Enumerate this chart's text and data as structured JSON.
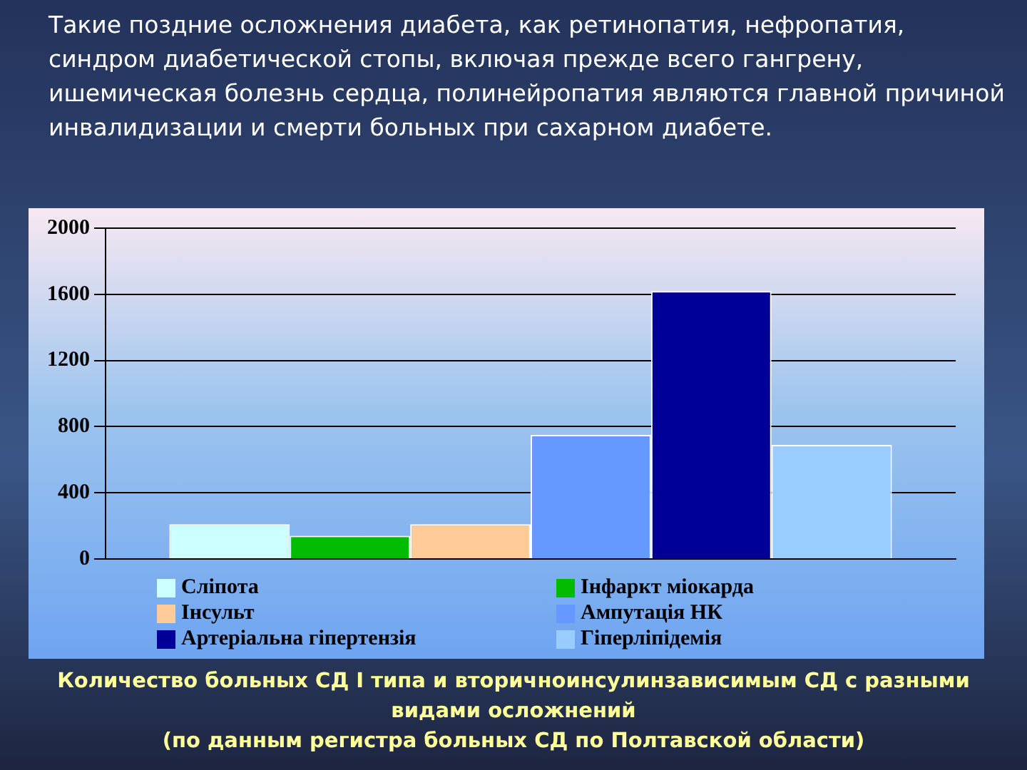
{
  "chart_data": {
    "type": "bar",
    "title": "Такие поздние осложнения диабета, как ретинопатия, нефропатия, синдром диабетической стопы, включая прежде всего гангрену, ишемическая болезнь сердца, полинейропатия являются главной причиной инвалидизации и смерти больных при сахарном диабете.",
    "categories": [
      null
    ],
    "series": [
      {
        "name": "Сліпота",
        "color": "#ccffff",
        "values": [
          210
        ]
      },
      {
        "name": "Інфаркт міокарда",
        "color": "#00bb00",
        "values": [
          140
        ]
      },
      {
        "name": "Інсульт",
        "color": "#ffcc99",
        "values": [
          210
        ]
      },
      {
        "name": "Ампутація НК",
        "color": "#6699ff",
        "values": [
          750
        ]
      },
      {
        "name": "Артеріальна гіпертензія",
        "color": "#000099",
        "values": [
          1620
        ]
      },
      {
        "name": "Гіперліпідемія",
        "color": "#99ccff",
        "values": [
          690
        ]
      }
    ],
    "ylim": [
      0,
      2000
    ],
    "yticks": [
      0,
      400,
      800,
      1200,
      1600,
      2000
    ],
    "grid": "y",
    "legend": "bottom",
    "annotations": [
      "Количество больных СД I типа и вторичноинсулинзависимым СД  с разными видами осложнений",
      "(по данным регистра больных СД по Полтавской области)"
    ]
  }
}
